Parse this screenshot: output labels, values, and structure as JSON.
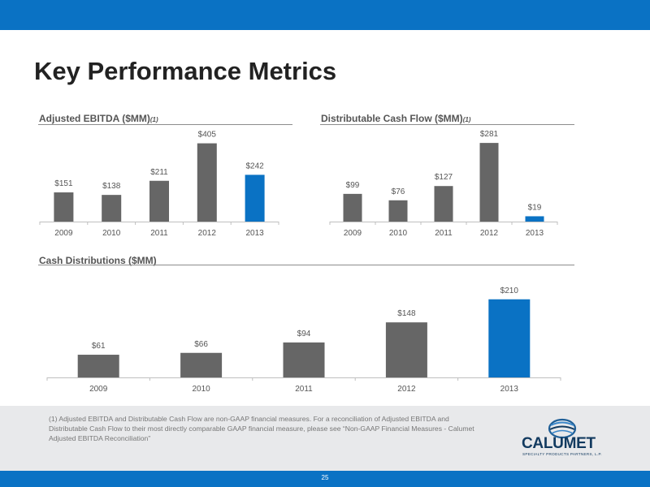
{
  "slide": {
    "title": "Key Performance Metrics",
    "footnote": "(1)  Adjusted EBITDA and Distributable Cash Flow are non-GAAP financial measures. For a reconciliation of Adjusted EBITDA and Distributable Cash Flow to their most directly comparable GAAP financial measure, please see “Non-GAAP Financial Measures - Calumet Adjusted EBITDA Reconciliation”",
    "page_number": "25",
    "logo_text": "CALUMET",
    "logo_subtext": "SPECIALTY PRODUCTS PARTNERS, L.P.",
    "colors": {
      "accent": "#0a72c4",
      "bar": "#666666",
      "highlight": "#0a72c4"
    }
  },
  "chart_data": [
    {
      "type": "bar",
      "title": "Adjusted EBITDA ($MM)",
      "title_note": "(1)",
      "categories": [
        "2009",
        "2010",
        "2011",
        "2012",
        "2013"
      ],
      "values": [
        151,
        138,
        211,
        405,
        242
      ],
      "value_labels": [
        "$151",
        "$138",
        "$211",
        "$405",
        "$242"
      ],
      "highlight_index": 4,
      "ylim": [
        0,
        420
      ]
    },
    {
      "type": "bar",
      "title": "Distributable Cash Flow ($MM)",
      "title_note": "(1)",
      "categories": [
        "2009",
        "2010",
        "2011",
        "2012",
        "2013"
      ],
      "values": [
        99,
        76,
        127,
        281,
        19
      ],
      "value_labels": [
        "$99",
        "$76",
        "$127",
        "$281",
        "$19"
      ],
      "highlight_index": 4,
      "ylim": [
        0,
        290
      ]
    },
    {
      "type": "bar",
      "title": "Cash Distributions ($MM)",
      "title_note": "",
      "categories": [
        "2009",
        "2010",
        "2011",
        "2012",
        "2013"
      ],
      "values": [
        61,
        66,
        94,
        148,
        210
      ],
      "value_labels": [
        "$61",
        "$66",
        "$94",
        "$148",
        "$210"
      ],
      "highlight_index": 4,
      "ylim": [
        0,
        216
      ]
    }
  ]
}
